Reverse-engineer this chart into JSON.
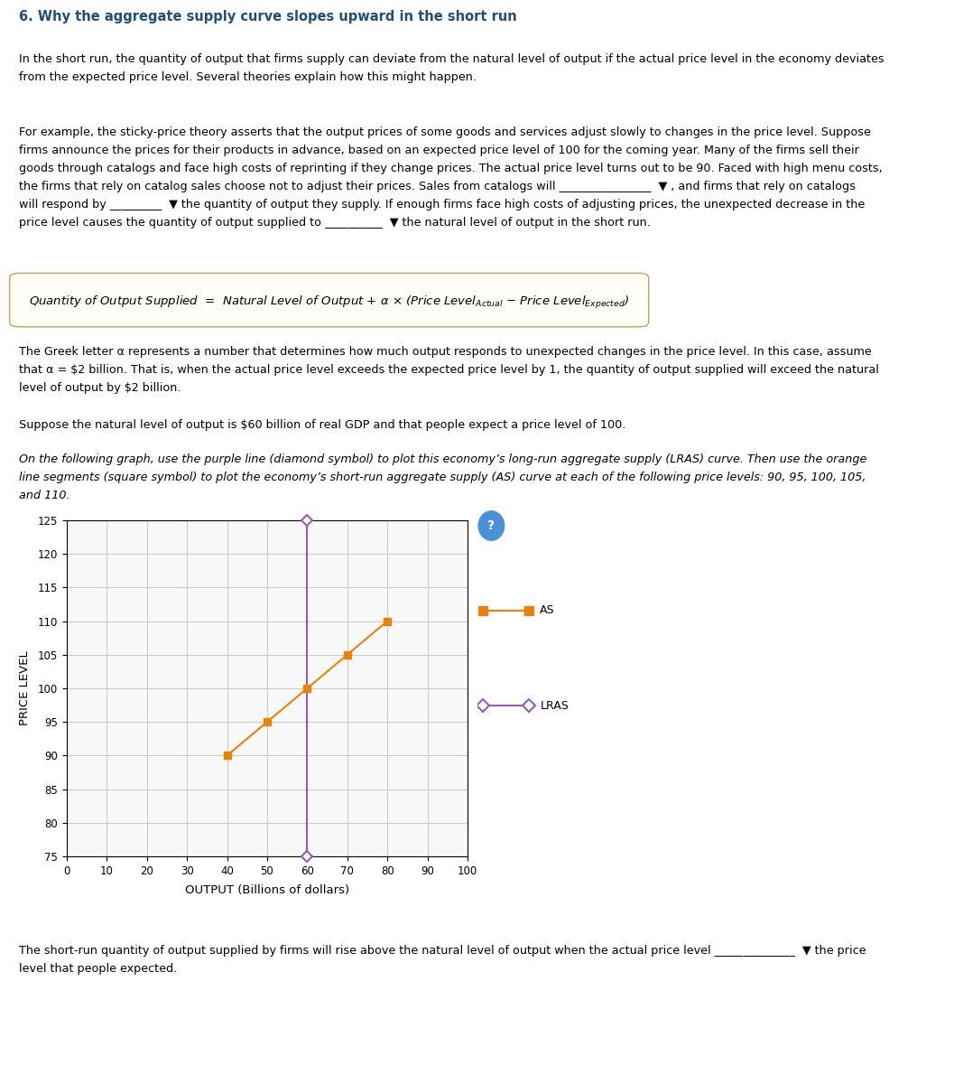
{
  "title": "6. Why the aggregate supply curve slopes upward in the short run",
  "natural_output": 60,
  "expected_price": 100,
  "alpha": 2,
  "as_price_levels": [
    90,
    95,
    100,
    105,
    110
  ],
  "xlim": [
    0,
    100
  ],
  "ylim": [
    75,
    125
  ],
  "xticks": [
    0,
    10,
    20,
    30,
    40,
    50,
    60,
    70,
    80,
    90,
    100
  ],
  "yticks": [
    75,
    80,
    85,
    90,
    95,
    100,
    105,
    110,
    115,
    120,
    125
  ],
  "xlabel": "OUTPUT (Billions of dollars)",
  "ylabel": "PRICE LEVEL",
  "lras_color": "#9B59B6",
  "as_color": "#E8820C",
  "background_color": "#FFFFFF",
  "grid_color": "#CCCCCC",
  "legend_as_label": "AS",
  "legend_lras_label": "LRAS",
  "lras_y_min": 75,
  "lras_y_max": 125,
  "text_color": "#000000",
  "header_color": "#1F4E79",
  "body_text": [
    "In the short run, the quantity of output that firms supply can deviate from the natural level of output if the actual price level in the economy deviates",
    "from the expected price level. Several theories explain how this might happen."
  ],
  "para2_text": [
    "For example, the **sticky-price theory** asserts that the output prices of some goods and services adjust slowly to changes in the price level. Suppose",
    "firms announce the prices for their products in advance, based on an expected price level of 100 for the coming year. Many of the firms sell their",
    "goods through catalogs and face high costs of reprinting if they change prices. The actual price level turns out to be 90. Faced with high menu costs,",
    "the firms that rely on catalog sales choose not to adjust their prices. Sales from catalogs will _________________ ▼ , and firms that rely on catalogs",
    "will respond by __________ ▼ the quantity of output they supply. If enough firms face high costs of adjusting prices, the unexpected decrease in the",
    "price level causes the quantity of output supplied to __________ ▼ the natural level of output in the short run."
  ],
  "equation_text": "Quantity of Output Supplied = Natural Level of Output + α × (Price Levelₚᵣᵉ − Price Levelₑˣᵖᵉᶜᵗᵉᵈ)",
  "alpha_text": [
    "The Greek letter α represents a number that determines how much output responds to unexpected changes in the price level. In this case, assume",
    "that α = $2 billion. That is, when the actual price level exceeds the expected price level by 1, the quantity of output supplied will exceed the natural",
    "level of output by $2 billion."
  ],
  "suppose_text": "Suppose the natural level of output is $60 billion of real GDP and that people expect a price level of 100.",
  "graph_instruction": [
    "On the following graph, use the purple line (diamond symbol) to plot this economy's long-run aggregate supply (LRAS) curve. Then use the orange",
    "line segments (square symbol) to plot the economy’s short-run aggregate supply (AS) curve at each of the following price levels: 90, 95, 100, 105,",
    "and 110."
  ],
  "footer_text": "The short-run quantity of output supplied by firms will rise above the natural level of output when the actual price level _________________ ▼ the price\nlevel that people expected."
}
